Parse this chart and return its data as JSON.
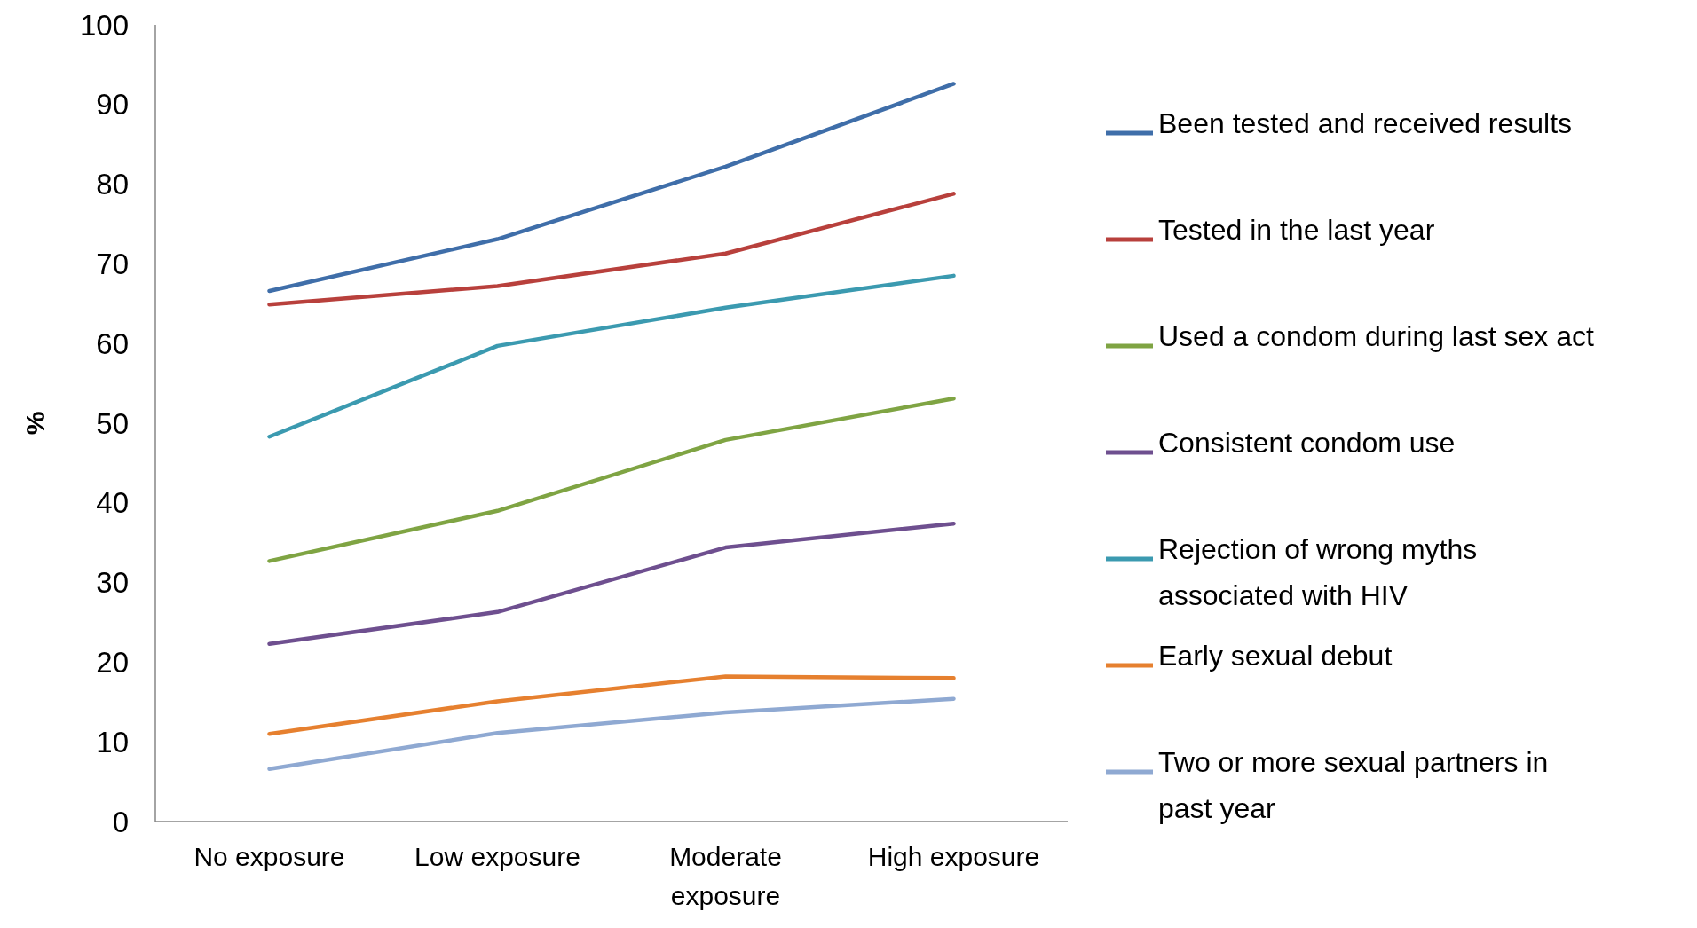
{
  "chart_data": {
    "type": "line",
    "ylabel": "%",
    "categories": [
      "No exposure",
      "Low exposure",
      "Moderate exposure",
      "High exposure"
    ],
    "ylim": [
      0,
      100
    ],
    "yticks": [
      0,
      10,
      20,
      30,
      40,
      50,
      60,
      70,
      80,
      90,
      100
    ],
    "grid": false,
    "legend": "right",
    "marker": "none",
    "line_style": "solid",
    "series": [
      {
        "name": "Been tested and received results",
        "color": "#3f6ea9",
        "values": [
          66.6,
          73.1,
          82.2,
          92.6
        ]
      },
      {
        "name": "Tested in the last year",
        "color": "#b8403c",
        "values": [
          64.9,
          67.2,
          71.3,
          78.8
        ]
      },
      {
        "name": "Used a condom during last sex act",
        "color": "#7fa443",
        "values": [
          32.7,
          39.0,
          47.9,
          53.1
        ]
      },
      {
        "name": "Consistent condom use",
        "color": "#6e4f8f",
        "values": [
          22.3,
          26.3,
          34.4,
          37.4
        ]
      },
      {
        "name": "Rejection of wrong myths associated with HIV",
        "color": "#3b9ab0",
        "values": [
          48.3,
          59.7,
          64.5,
          68.5
        ]
      },
      {
        "name": "Early sexual debut",
        "color": "#e6802f",
        "values": [
          11.0,
          15.1,
          18.2,
          18.0
        ]
      },
      {
        "name": "Two or more sexual partners in past year",
        "color": "#8fa9d2",
        "values": [
          6.6,
          11.1,
          13.7,
          15.4
        ]
      }
    ]
  }
}
